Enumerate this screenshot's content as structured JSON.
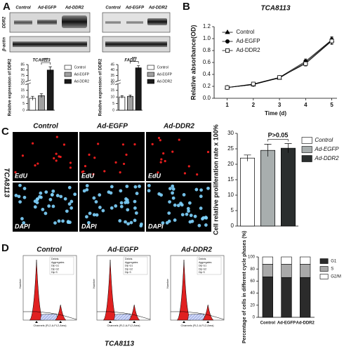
{
  "panel_labels": [
    "A",
    "B",
    "C",
    "D"
  ],
  "blot": {
    "lanes": [
      "Control",
      "Ad-EGFP",
      "Ad-DDR2"
    ],
    "rows": [
      "DDR2",
      "β-actin"
    ]
  },
  "edu_images": {
    "cell_line": "TCA8113",
    "columns": [
      "Control",
      "Ad-EGFP",
      "Ad-DDR2"
    ],
    "rows": [
      "EdU",
      "DAPI"
    ]
  },
  "flow": {
    "cell_line": "TCA8113",
    "columns": [
      "Control",
      "Ad-EGFP",
      "Ad-DDR2"
    ],
    "gates": [
      "Debris",
      "Aggregates",
      "Dip G1",
      "Dip G2",
      "Dip S"
    ],
    "x_label": "Channels (FL2-A-FL2-Area)",
    "y_label": "Number"
  },
  "chart_data": [
    {
      "type": "bar",
      "title": "TCA8113",
      "y_label": "Relative expression of DDR2",
      "categories": [
        "Control",
        "Ad-EGFP",
        "Ad-DDR2"
      ],
      "colors": [
        "#ffffff",
        "#a0a0a0",
        "#1a1a1a"
      ],
      "values": [
        9,
        11,
        80
      ],
      "errors": [
        1.5,
        1.5,
        3
      ],
      "ylim": [
        0,
        85
      ],
      "ybreak": [
        20,
        70
      ],
      "yticks": [
        0,
        5,
        10,
        15,
        20,
        70,
        75,
        80,
        85
      ],
      "annotation": "***",
      "legend": true
    },
    {
      "type": "bar",
      "title": "FADU",
      "y_label": "Relative expression of DDR2",
      "categories": [
        "Control",
        "Ad-EGFP",
        "Ad-DDR2"
      ],
      "colors": [
        "#ffffff",
        "#a0a0a0",
        "#1a1a1a"
      ],
      "values": [
        10,
        10.5,
        42
      ],
      "errors": [
        1,
        1,
        2
      ],
      "ylim": [
        0,
        45
      ],
      "ybreak": [
        20,
        30
      ],
      "yticks": [
        0,
        5,
        10,
        15,
        20,
        30,
        35,
        40,
        45
      ],
      "annotation": "***",
      "legend": true
    },
    {
      "type": "line",
      "title": "TCA8113",
      "x_label": "Time (d)",
      "y_label": "Relative absorbance(OD)",
      "x": [
        1,
        2,
        3,
        4,
        5
      ],
      "xlim": [
        0.5,
        5.2
      ],
      "xticks": [
        1,
        2,
        3,
        4,
        5
      ],
      "ylim": [
        0,
        1.2
      ],
      "yticks": [
        {
          "value": 0,
          "label": "0.0"
        },
        0.2,
        0.4,
        0.6,
        0.8,
        {
          "value": 1,
          "label": "1.0"
        },
        1.2
      ],
      "series": [
        {
          "name": "Control",
          "color": "#000000",
          "marker": "triangle",
          "values": [
            0.18,
            0.23,
            0.34,
            0.6,
            0.97
          ],
          "errors": [
            0.01,
            0.01,
            0.02,
            0.04,
            0.06
          ]
        },
        {
          "name": "Ad-EGFP",
          "color": "#000000",
          "marker": "circle",
          "values": [
            0.18,
            0.23,
            0.35,
            0.62,
            0.98
          ],
          "errors": [
            0.01,
            0.01,
            0.02,
            0.04,
            0.05
          ]
        },
        {
          "name": "Ad-DDR2",
          "color": "#000000",
          "marker": "square",
          "values": [
            0.18,
            0.24,
            0.35,
            0.58,
            0.96
          ],
          "errors": [
            0.01,
            0.01,
            0.02,
            0.04,
            0.06
          ]
        }
      ]
    },
    {
      "type": "bar",
      "y_label": "Cell relative proliferation rate x 100%",
      "categories": [
        "Control",
        "Ad-EGFP",
        "Ad-DDR2"
      ],
      "colors": [
        "#ffffff",
        "#a8aeae",
        "#2a2e2e"
      ],
      "values": [
        22,
        24.5,
        25.2
      ],
      "errors": [
        1,
        2,
        1.5
      ],
      "ylim": [
        0,
        30
      ],
      "yticks": [
        0,
        5,
        10,
        15,
        20,
        25,
        30
      ],
      "annotation": "P>0.05",
      "legend": true
    },
    {
      "type": "stacked_bar",
      "y_label": "Percentage of cells in different cycle phases (%)",
      "categories": [
        "Control",
        "Ad-EGFP",
        "Ad-DDR2"
      ],
      "series": [
        {
          "name": "G1",
          "color": "#2b2b2b",
          "values": [
            67,
            66,
            66
          ]
        },
        {
          "name": "S",
          "color": "#a9a9a9",
          "values": [
            21,
            22,
            22
          ]
        },
        {
          "name": "G2/M",
          "color": "#ffffff",
          "values": [
            12,
            12,
            12
          ]
        }
      ],
      "ylim": [
        0,
        100
      ],
      "yticks": [
        0,
        20,
        40,
        60,
        80,
        100
      ],
      "legend": true
    }
  ]
}
